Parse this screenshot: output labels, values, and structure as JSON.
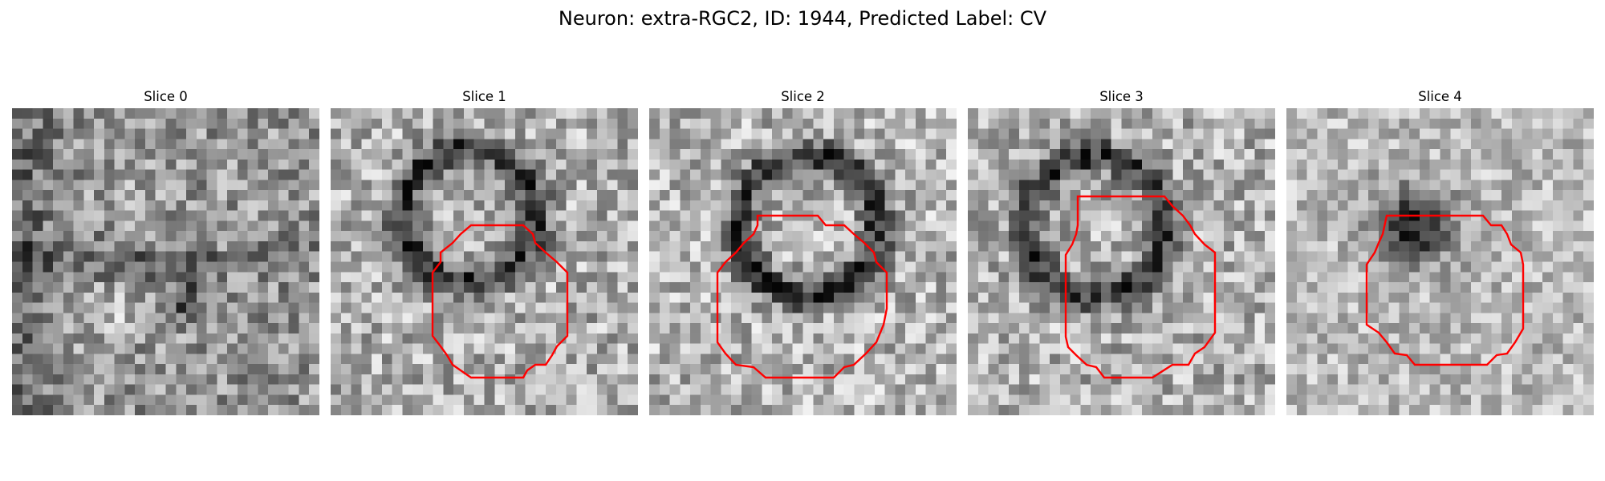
{
  "figure": {
    "title": "Neuron: extra-RGC2, ID: 1944, Predicted Label: CV"
  },
  "panels": [
    {
      "title": "Slice 0",
      "has_contour": false,
      "pattern": "diffuse"
    },
    {
      "title": "Slice 1",
      "has_contour": true,
      "pattern": "dark-ring"
    },
    {
      "title": "Slice 2",
      "has_contour": true,
      "pattern": "dark-ring"
    },
    {
      "title": "Slice 3",
      "has_contour": true,
      "pattern": "dark-ring"
    },
    {
      "title": "Slice 4",
      "has_contour": true,
      "pattern": "dark-blob"
    }
  ],
  "colors": {
    "contour": "#ff0000",
    "colormap": "gray"
  }
}
